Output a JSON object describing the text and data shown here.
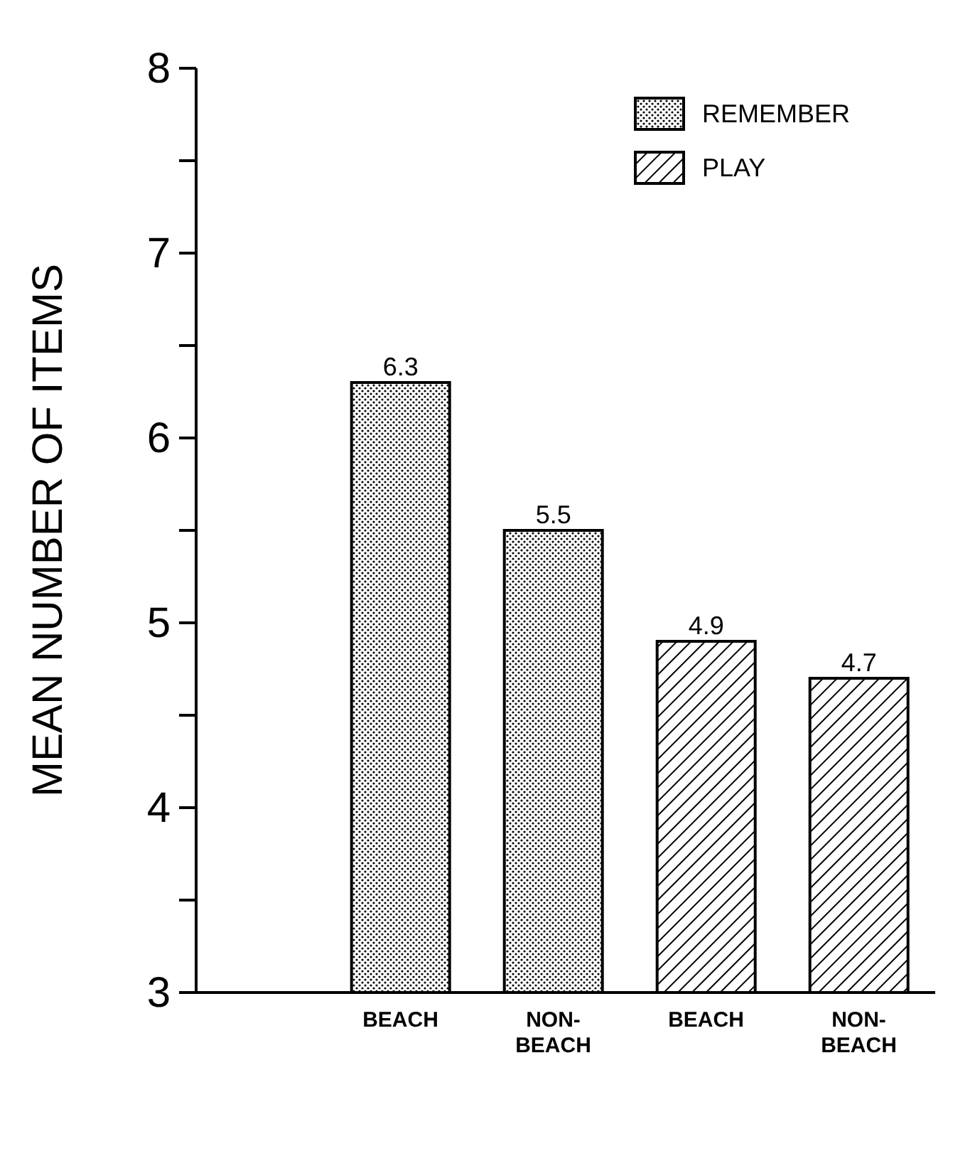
{
  "chart_data": {
    "type": "bar",
    "ylabel": "MEAN NUMBER OF ITEMS",
    "categories": [
      "BEACH",
      "NON-BEACH",
      "BEACH",
      "NON-BEACH"
    ],
    "series": [
      {
        "name": "REMEMBER",
        "color": "#000000",
        "values": [
          6.3,
          5.5,
          null,
          null
        ]
      },
      {
        "name": "PLAY",
        "color": "#000000",
        "values": [
          null,
          null,
          4.9,
          4.7
        ]
      }
    ],
    "stacked": true,
    "ylim": [
      3,
      8
    ],
    "yticks": [
      3,
      {
        "value": 3.5,
        "label": null
      },
      4,
      {
        "value": 4.5,
        "label": null
      },
      5,
      {
        "value": 5.5,
        "label": null
      },
      6,
      {
        "value": 6.5,
        "label": null
      },
      7,
      {
        "value": 7.5,
        "label": null
      },
      8
    ],
    "data_labels": true,
    "legend": "top right",
    "grid": false
  }
}
